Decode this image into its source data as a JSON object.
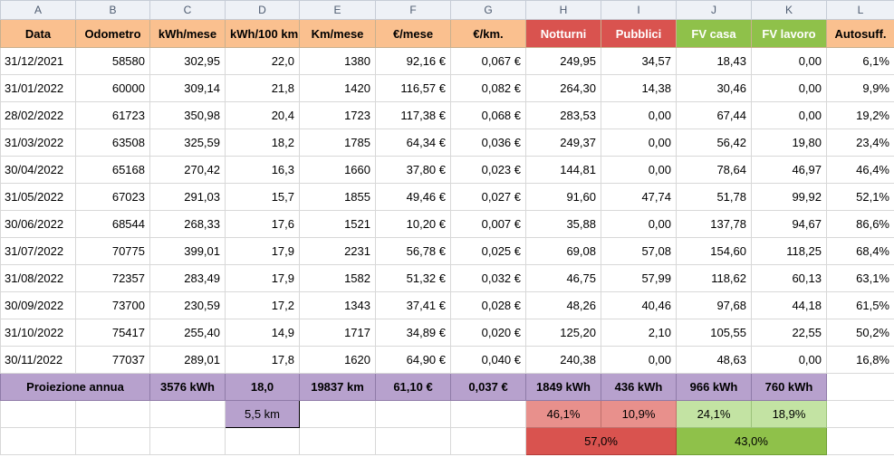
{
  "column_letters": [
    "A",
    "B",
    "C",
    "D",
    "E",
    "F",
    "G",
    "H",
    "I",
    "J",
    "K",
    "L"
  ],
  "headers": [
    "Data",
    "Odometro",
    "kWh/mese",
    "kWh/100 km",
    "Km/mese",
    "€/mese",
    "€/km.",
    "Notturni",
    "Pubblici",
    "FV casa",
    "FV lavoro",
    "Autosuff."
  ],
  "rows": [
    [
      "31/12/2021",
      "58580",
      "302,95",
      "22,0",
      "1380",
      "92,16 €",
      "0,067 €",
      "249,95",
      "34,57",
      "18,43",
      "0,00",
      "6,1%"
    ],
    [
      "31/01/2022",
      "60000",
      "309,14",
      "21,8",
      "1420",
      "116,57 €",
      "0,082 €",
      "264,30",
      "14,38",
      "30,46",
      "0,00",
      "9,9%"
    ],
    [
      "28/02/2022",
      "61723",
      "350,98",
      "20,4",
      "1723",
      "117,38 €",
      "0,068 €",
      "283,53",
      "0,00",
      "67,44",
      "0,00",
      "19,2%"
    ],
    [
      "31/03/2022",
      "63508",
      "325,59",
      "18,2",
      "1785",
      "64,34 €",
      "0,036 €",
      "249,37",
      "0,00",
      "56,42",
      "19,80",
      "23,4%"
    ],
    [
      "30/04/2022",
      "65168",
      "270,42",
      "16,3",
      "1660",
      "37,80 €",
      "0,023 €",
      "144,81",
      "0,00",
      "78,64",
      "46,97",
      "46,4%"
    ],
    [
      "31/05/2022",
      "67023",
      "291,03",
      "15,7",
      "1855",
      "49,46 €",
      "0,027 €",
      "91,60",
      "47,74",
      "51,78",
      "99,92",
      "52,1%"
    ],
    [
      "30/06/2022",
      "68544",
      "268,33",
      "17,6",
      "1521",
      "10,20 €",
      "0,007 €",
      "35,88",
      "0,00",
      "137,78",
      "94,67",
      "86,6%"
    ],
    [
      "31/07/2022",
      "70775",
      "399,01",
      "17,9",
      "2231",
      "56,78 €",
      "0,025 €",
      "69,08",
      "57,08",
      "154,60",
      "118,25",
      "68,4%"
    ],
    [
      "31/08/2022",
      "72357",
      "283,49",
      "17,9",
      "1582",
      "51,32 €",
      "0,032 €",
      "46,75",
      "57,99",
      "118,62",
      "60,13",
      "63,1%"
    ],
    [
      "30/09/2022",
      "73700",
      "230,59",
      "17,2",
      "1343",
      "37,41 €",
      "0,028 €",
      "48,26",
      "40,46",
      "97,68",
      "44,18",
      "61,5%"
    ],
    [
      "31/10/2022",
      "75417",
      "255,40",
      "14,9",
      "1717",
      "34,89 €",
      "0,020 €",
      "125,20",
      "2,10",
      "105,55",
      "22,55",
      "50,2%"
    ],
    [
      "30/11/2022",
      "77037",
      "289,01",
      "17,8",
      "1620",
      "64,90 €",
      "0,040 €",
      "240,38",
      "0,00",
      "48,63",
      "0,00",
      "16,8%"
    ]
  ],
  "projection": {
    "label": "Proiezione annua",
    "kwh_mese": "3576 kWh",
    "kwh_100km": "18,0",
    "km_mese": "19837 km",
    "eur_mese": "61,10 €",
    "eur_km": "0,037 €",
    "notturni": "1849 kWh",
    "pubblici": "436 kWh",
    "fv_casa": "966 kWh",
    "fv_lavoro": "760 kWh"
  },
  "summary": {
    "km_value": "5,5 km",
    "notturni_pct": "46,1%",
    "pubblici_pct": "10,9%",
    "fv_casa_pct": "24,1%",
    "fv_lavoro_pct": "18,9%",
    "grid_total_pct": "57,0%",
    "solar_total_pct": "43,0%"
  },
  "colors": {
    "header_orange": "#fac08f",
    "header_red": "#d9534f",
    "header_green": "#8fc14a",
    "projection_purple": "#b7a1cd",
    "pct_pink": "#e8908c",
    "pct_lightgreen": "#c3e3a3"
  }
}
